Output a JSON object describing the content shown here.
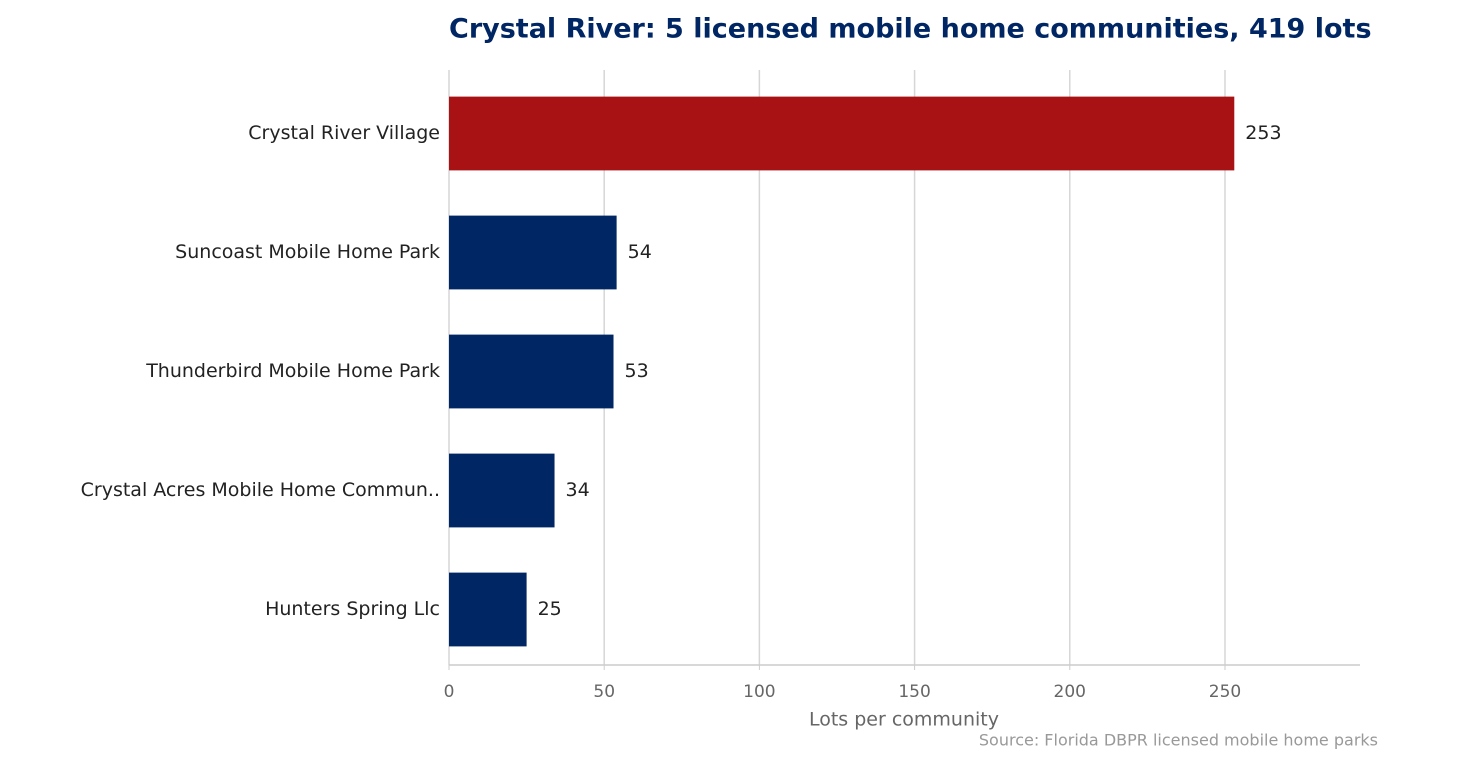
{
  "chart_data": {
    "type": "barh",
    "title": "Crystal River: 5 licensed mobile home communities, 419 lots",
    "categories": [
      "Crystal River Village",
      "Suncoast Mobile Home Park",
      "Thunderbird Mobile Home Park",
      "Crystal Acres Mobile Home Commun..",
      "Hunters Spring Llc"
    ],
    "values": [
      253,
      54,
      53,
      34,
      25
    ],
    "colors": [
      "#a81215",
      "#002664",
      "#002664",
      "#002664",
      "#002664"
    ],
    "xlim": [
      0,
      293.5
    ],
    "xticks": [
      0,
      50,
      100,
      150,
      200,
      250
    ],
    "xlabel": "Lots per community",
    "source": "Source: Florida DBPR licensed mobile home parks",
    "grid": true
  }
}
